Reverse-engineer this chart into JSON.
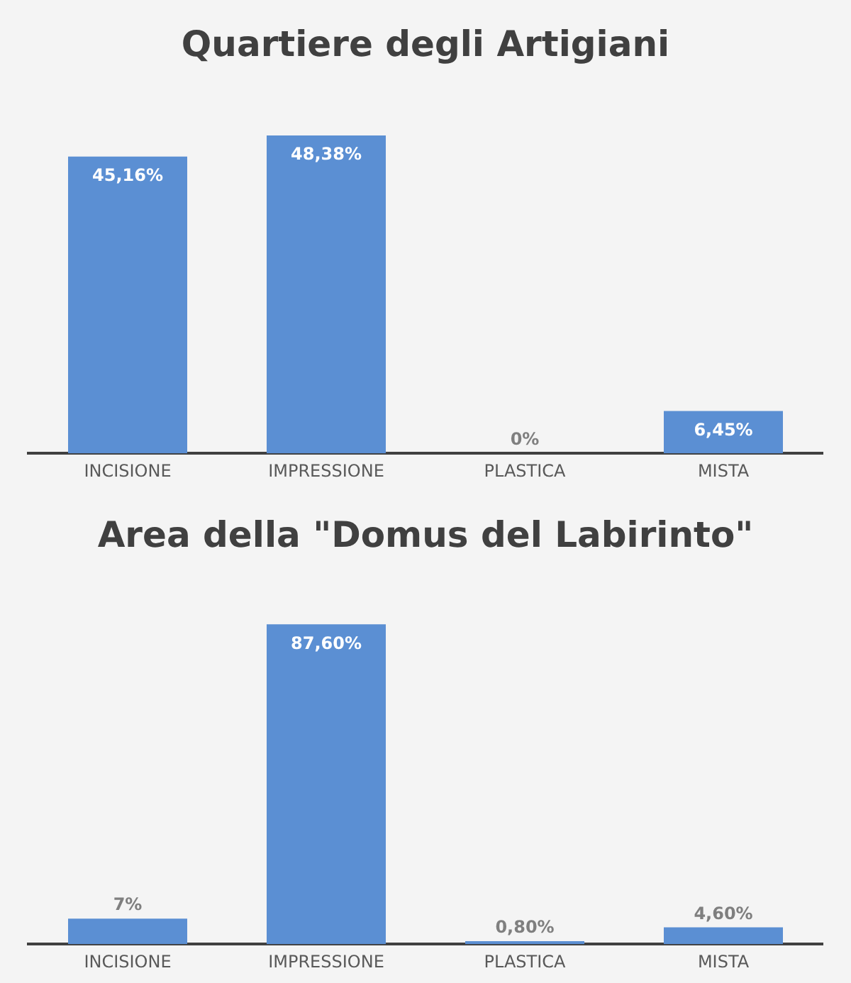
{
  "chart_data": [
    {
      "type": "bar",
      "title": "Quartiere degli Artigiani",
      "categories": [
        "INCISIONE",
        "IMPRESSIONE",
        "PLASTICA",
        "MISTA"
      ],
      "values": [
        45.16,
        48.38,
        0,
        6.45
      ],
      "value_labels": [
        "45,16%",
        "48,38%",
        "0%",
        "6,45%"
      ],
      "color": "#5b8fd3",
      "tick_labels": "x",
      "grid": false
    },
    {
      "type": "bar",
      "title": "Area della \"Domus del Labirinto\"",
      "categories": [
        "INCISIONE",
        "IMPRESSIONE",
        "PLASTICA",
        "MISTA"
      ],
      "values": [
        7,
        87.6,
        0.8,
        4.6
      ],
      "value_labels": [
        "7%",
        "87,60%",
        "0,80%",
        "4,60%"
      ],
      "color": "#5b8fd3",
      "tick_labels": "x",
      "grid": false
    }
  ]
}
